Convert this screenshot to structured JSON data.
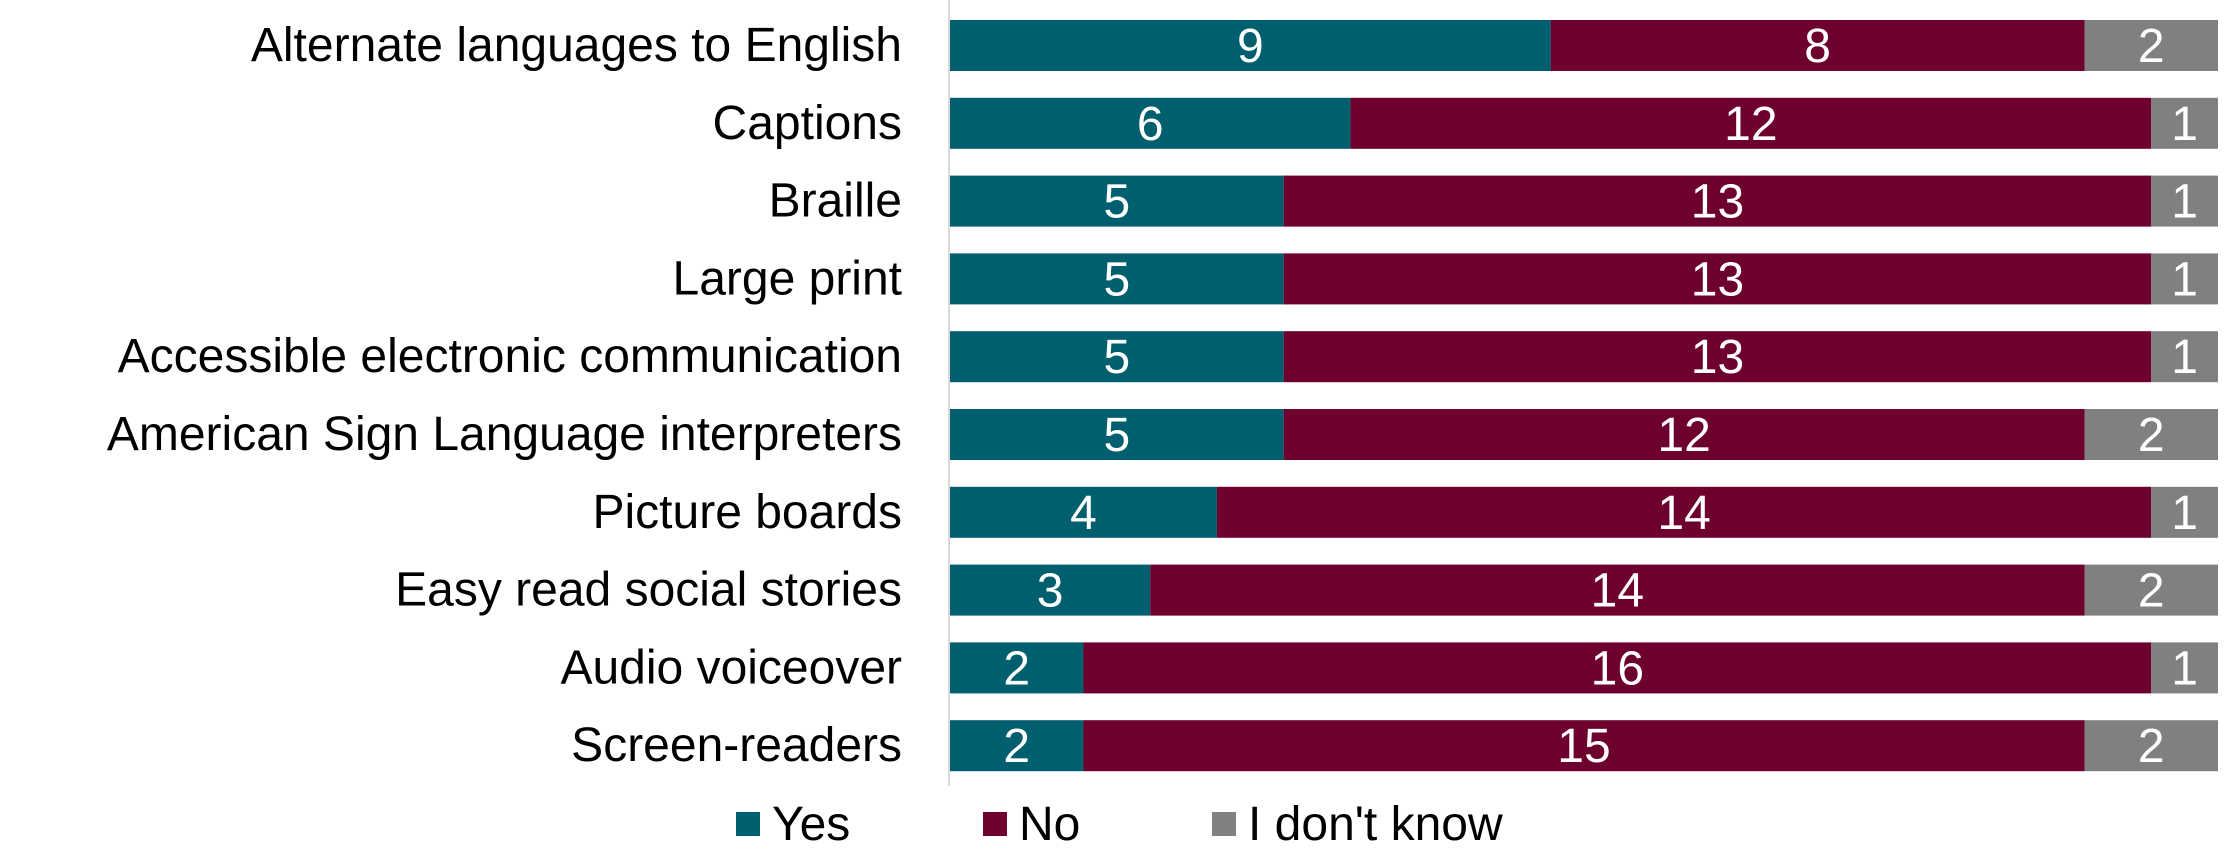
{
  "chart_data": {
    "type": "bar",
    "orientation": "horizontal",
    "stacked": true,
    "normalized": true,
    "categories": [
      "Alternate languages to English",
      "Captions",
      "Braille",
      "Large print",
      "Accessible electronic communication",
      "American Sign Language interpreters",
      "Picture boards",
      "Easy read social stories",
      "Audio voiceover",
      "Screen-readers"
    ],
    "series": [
      {
        "name": "Yes",
        "color": "#005f6e",
        "values": [
          9,
          6,
          5,
          5,
          5,
          5,
          4,
          3,
          2,
          2
        ]
      },
      {
        "name": "No",
        "color": "#6e0030",
        "values": [
          8,
          12,
          13,
          13,
          13,
          12,
          14,
          14,
          16,
          15
        ]
      },
      {
        "name": "I don't know",
        "color": "#808080",
        "values": [
          2,
          1,
          1,
          1,
          1,
          2,
          1,
          2,
          1,
          2
        ]
      }
    ],
    "data_labels": true,
    "grid": false,
    "legend_position": "bottom",
    "title": "",
    "xlabel": "",
    "ylabel": ""
  }
}
